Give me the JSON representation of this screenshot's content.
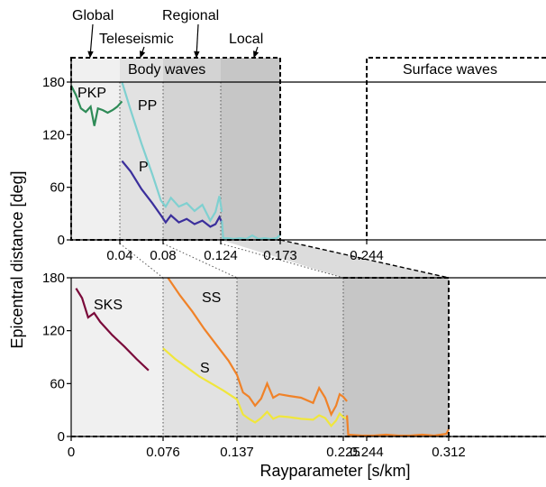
{
  "top_labels": {
    "global": "Global",
    "teleseismic": "Teleseismic",
    "regional": "Regional",
    "local": "Local",
    "body_waves": "Body waves",
    "surface_waves": "Surface waves"
  },
  "colors": {
    "PKP": "#2e8b57",
    "PP": "#7fd0d0",
    "P": "#3b2f9c",
    "SKS": "#7a0a3a",
    "SS": "#f08228",
    "S": "#f0e63c",
    "shade1": "#f0f0f0",
    "shade2": "#e2e2e2",
    "shade3": "#d3d3d3",
    "shade4": "#c6c6c6"
  },
  "chart_data": [
    {
      "type": "line",
      "panel": "top",
      "ylabel": "Epicentral distance [deg]",
      "ylim": [
        0,
        180
      ],
      "yticks": [
        "0",
        "60",
        "120",
        "180"
      ],
      "xticks": [
        "0.04",
        "0.08",
        "0.124",
        "0.173",
        "0.244"
      ],
      "xtick_values": [
        0.04,
        0.08,
        0.124,
        0.173,
        0.244
      ],
      "shaded_regions": [
        [
          0,
          0.04
        ],
        [
          0.04,
          0.08
        ],
        [
          0.08,
          0.124
        ],
        [
          0.124,
          0.173
        ]
      ],
      "series": [
        {
          "name": "PKP",
          "x": [
            0.0,
            0.004,
            0.008,
            0.012,
            0.016,
            0.019,
            0.022,
            0.026,
            0.03,
            0.034,
            0.038,
            0.042
          ],
          "y": [
            176,
            165,
            150,
            146,
            152,
            130,
            150,
            148,
            145,
            148,
            152,
            158
          ]
        },
        {
          "name": "PP",
          "x": [
            0.042,
            0.05,
            0.06,
            0.07,
            0.078,
            0.082,
            0.086,
            0.092,
            0.098,
            0.104,
            0.11,
            0.116,
            0.12,
            0.123,
            0.125
          ],
          "y": [
            180,
            148,
            110,
            75,
            45,
            38,
            48,
            38,
            42,
            33,
            40,
            22,
            32,
            50,
            32
          ]
        },
        {
          "name": "P",
          "x": [
            0.042,
            0.05,
            0.06,
            0.07,
            0.078,
            0.082,
            0.086,
            0.092,
            0.098,
            0.104,
            0.11,
            0.116,
            0.12,
            0.123,
            0.125
          ],
          "y": [
            90,
            78,
            58,
            42,
            28,
            20,
            28,
            20,
            24,
            18,
            22,
            15,
            18,
            26,
            20
          ]
        },
        {
          "name": "",
          "x": [
            0.125,
            0.126,
            0.13,
            0.135,
            0.14,
            0.145,
            0.15,
            0.155,
            0.16,
            0.165,
            0.17,
            0.173
          ],
          "y": [
            22,
            2,
            2,
            1,
            2,
            1,
            5,
            1,
            2,
            1,
            2,
            6
          ]
        }
      ]
    },
    {
      "type": "line",
      "panel": "bottom",
      "xlabel": "Rayparameter [s/km]",
      "ylim": [
        0,
        180
      ],
      "yticks": [
        "0",
        "60",
        "120",
        "180"
      ],
      "xticks": [
        "0",
        "0.076",
        "0.137",
        "0.225",
        "0.244",
        "0.312"
      ],
      "xtick_values": [
        0,
        0.076,
        0.137,
        0.225,
        0.244,
        0.312
      ],
      "shaded_regions": [
        [
          0,
          0.076
        ],
        [
          0.076,
          0.137
        ],
        [
          0.137,
          0.225
        ],
        [
          0.225,
          0.312
        ]
      ],
      "series": [
        {
          "name": "SKS",
          "x": [
            0.004,
            0.009,
            0.014,
            0.019,
            0.024,
            0.034,
            0.044,
            0.054,
            0.064
          ],
          "y": [
            168,
            157,
            135,
            140,
            130,
            115,
            102,
            88,
            75
          ]
        },
        {
          "name": "SS",
          "x": [
            0.08,
            0.09,
            0.1,
            0.11,
            0.12,
            0.13,
            0.137,
            0.142,
            0.147,
            0.152,
            0.157,
            0.162,
            0.167,
            0.172,
            0.18,
            0.19,
            0.2,
            0.205,
            0.21,
            0.215,
            0.219,
            0.222,
            0.225,
            0.228
          ],
          "y": [
            180,
            160,
            142,
            122,
            104,
            86,
            70,
            50,
            45,
            35,
            43,
            60,
            44,
            48,
            46,
            44,
            38,
            55,
            44,
            25,
            35,
            48,
            45,
            40
          ]
        },
        {
          "name": "S",
          "x": [
            0.076,
            0.086,
            0.096,
            0.106,
            0.116,
            0.126,
            0.137,
            0.142,
            0.147,
            0.152,
            0.157,
            0.162,
            0.167,
            0.172,
            0.18,
            0.19,
            0.2,
            0.205,
            0.21,
            0.215,
            0.219,
            0.222,
            0.225,
            0.228
          ],
          "y": [
            100,
            88,
            78,
            68,
            60,
            52,
            42,
            25,
            20,
            16,
            21,
            28,
            20,
            23,
            22,
            20,
            19,
            24,
            21,
            12,
            18,
            26,
            22,
            20
          ]
        },
        {
          "name": "",
          "x": [
            0.228,
            0.229,
            0.24,
            0.25,
            0.26,
            0.27,
            0.28,
            0.29,
            0.3,
            0.31,
            0.312
          ],
          "y": [
            24,
            2,
            1,
            1,
            2,
            1,
            1,
            2,
            1,
            3,
            8
          ]
        }
      ]
    }
  ]
}
